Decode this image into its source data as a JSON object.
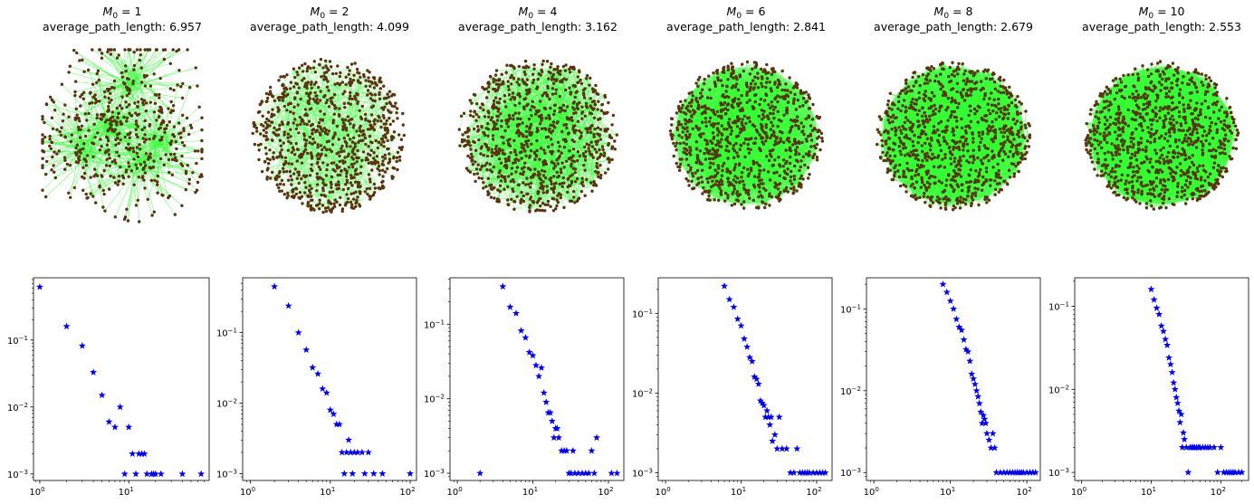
{
  "chart_data": [
    {
      "type": "scatter",
      "panel": "network",
      "title_var": "M",
      "title_sub": "0",
      "title_eq": " = 1",
      "title_metric": "average_path_length: 6.957",
      "m0": 1,
      "average_path_length": 6.957,
      "colors": {
        "node": "#5a3410",
        "edge": "#33ff33"
      }
    },
    {
      "type": "scatter",
      "panel": "network",
      "title_var": "M",
      "title_sub": "0",
      "title_eq": " = 2",
      "title_metric": "average_path_length: 4.099",
      "m0": 2,
      "average_path_length": 4.099,
      "colors": {
        "node": "#5a3410",
        "edge": "#33ff33"
      }
    },
    {
      "type": "scatter",
      "panel": "network",
      "title_var": "M",
      "title_sub": "0",
      "title_eq": " = 4",
      "title_metric": "average_path_length: 3.162",
      "m0": 4,
      "average_path_length": 3.162,
      "colors": {
        "node": "#5a3410",
        "edge": "#33ff33"
      }
    },
    {
      "type": "scatter",
      "panel": "network",
      "title_var": "M",
      "title_sub": "0",
      "title_eq": " = 6",
      "title_metric": "average_path_length: 2.841",
      "m0": 6,
      "average_path_length": 2.841,
      "colors": {
        "node": "#5a3410",
        "edge": "#33ff33"
      }
    },
    {
      "type": "scatter",
      "panel": "network",
      "title_var": "M",
      "title_sub": "0",
      "title_eq": " = 8",
      "title_metric": "average_path_length: 2.679",
      "m0": 8,
      "average_path_length": 2.679,
      "colors": {
        "node": "#5a3410",
        "edge": "#33ff33"
      }
    },
    {
      "type": "scatter",
      "panel": "network",
      "title_var": "M",
      "title_sub": "0",
      "title_eq": " = 10",
      "title_metric": "average_path_length: 2.553",
      "m0": 10,
      "average_path_length": 2.553,
      "colors": {
        "node": "#5a3410",
        "edge": "#33ff33"
      }
    },
    {
      "type": "scatter",
      "panel": "degree-distribution",
      "xscale": "log",
      "yscale": "log",
      "xlim": [
        0.85,
        80
      ],
      "ylim": [
        0.0008,
        0.85
      ],
      "xticks": [
        {
          "base": "10",
          "exp": "0",
          "value": 1
        },
        {
          "base": "10",
          "exp": "1",
          "value": 10
        }
      ],
      "yticks": [
        {
          "base": "10",
          "exp": "−3",
          "value": 0.001
        },
        {
          "base": "10",
          "exp": "−2",
          "value": 0.01
        },
        {
          "base": "10",
          "exp": "−1",
          "value": 0.1
        }
      ],
      "marker": "*",
      "color": "#0000ff",
      "x": [
        1,
        2,
        3,
        4,
        5,
        6,
        7,
        8,
        9,
        10,
        11,
        12,
        13,
        14,
        15,
        16,
        18,
        19,
        20,
        23,
        40,
        65
      ],
      "y": [
        0.62,
        0.16,
        0.082,
        0.033,
        0.015,
        0.006,
        0.005,
        0.01,
        0.001,
        0.005,
        0.002,
        0.001,
        0.002,
        0.002,
        0.002,
        0.001,
        0.001,
        0.001,
        0.001,
        0.001,
        0.001,
        0.001
      ]
    },
    {
      "type": "scatter",
      "panel": "degree-distribution",
      "xscale": "log",
      "yscale": "log",
      "xlim": [
        0.8,
        120
      ],
      "ylim": [
        0.0008,
        0.6
      ],
      "xticks": [
        {
          "base": "10",
          "exp": "0",
          "value": 1
        },
        {
          "base": "10",
          "exp": "1",
          "value": 10
        },
        {
          "base": "10",
          "exp": "2",
          "value": 100
        }
      ],
      "yticks": [
        {
          "base": "10",
          "exp": "−3",
          "value": 0.001
        },
        {
          "base": "10",
          "exp": "−2",
          "value": 0.01
        },
        {
          "base": "10",
          "exp": "−1",
          "value": 0.1
        }
      ],
      "marker": "*",
      "color": "#0000ff",
      "x": [
        2,
        3,
        4,
        5,
        6,
        7,
        8,
        9,
        10,
        11,
        12,
        13,
        14,
        15,
        16,
        17,
        18,
        19,
        20,
        22,
        25,
        27,
        30,
        35,
        45,
        100
      ],
      "y": [
        0.45,
        0.24,
        0.1,
        0.057,
        0.032,
        0.026,
        0.016,
        0.014,
        0.008,
        0.007,
        0.005,
        0.005,
        0.002,
        0.001,
        0.002,
        0.003,
        0.002,
        0.001,
        0.002,
        0.002,
        0.002,
        0.001,
        0.002,
        0.001,
        0.001,
        0.001
      ]
    },
    {
      "type": "scatter",
      "panel": "degree-distribution",
      "xscale": "log",
      "yscale": "log",
      "xlim": [
        0.8,
        160
      ],
      "ylim": [
        0.0008,
        0.42
      ],
      "xticks": [
        {
          "base": "10",
          "exp": "0",
          "value": 1
        },
        {
          "base": "10",
          "exp": "1",
          "value": 10
        },
        {
          "base": "10",
          "exp": "2",
          "value": 100
        }
      ],
      "yticks": [
        {
          "base": "10",
          "exp": "−3",
          "value": 0.001
        },
        {
          "base": "10",
          "exp": "−2",
          "value": 0.01
        },
        {
          "base": "10",
          "exp": "−1",
          "value": 0.1
        }
      ],
      "marker": "*",
      "color": "#0000ff",
      "x": [
        2,
        4,
        5,
        6,
        7,
        8,
        9,
        10,
        11,
        12,
        13,
        14,
        15,
        16,
        17,
        18,
        19,
        20,
        21,
        22,
        24,
        26,
        28,
        30,
        32,
        34,
        36,
        40,
        45,
        50,
        55,
        60,
        65,
        70,
        110,
        130
      ],
      "y": [
        0.001,
        0.32,
        0.17,
        0.14,
        0.082,
        0.066,
        0.042,
        0.038,
        0.028,
        0.02,
        0.026,
        0.012,
        0.009,
        0.0065,
        0.0065,
        0.005,
        0.003,
        0.004,
        0.004,
        0.003,
        0.002,
        0.002,
        0.002,
        0.001,
        0.001,
        0.002,
        0.001,
        0.001,
        0.001,
        0.001,
        0.001,
        0.002,
        0.001,
        0.003,
        0.001,
        0.001
      ]
    },
    {
      "type": "scatter",
      "panel": "degree-distribution",
      "xscale": "log",
      "yscale": "log",
      "xlim": [
        0.8,
        160
      ],
      "ylim": [
        0.0008,
        0.28
      ],
      "xticks": [
        {
          "base": "10",
          "exp": "0",
          "value": 1
        },
        {
          "base": "10",
          "exp": "1",
          "value": 10
        },
        {
          "base": "10",
          "exp": "2",
          "value": 100
        }
      ],
      "yticks": [
        {
          "base": "10",
          "exp": "−3",
          "value": 0.001
        },
        {
          "base": "10",
          "exp": "−2",
          "value": 0.01
        },
        {
          "base": "10",
          "exp": "−1",
          "value": 0.1
        }
      ],
      "marker": "*",
      "color": "#0000ff",
      "x": [
        6,
        7,
        8,
        9,
        10,
        11,
        12,
        13,
        14,
        15,
        16,
        17,
        18,
        19,
        20,
        21,
        22,
        23,
        24,
        25,
        26,
        28,
        30,
        32,
        35,
        40,
        45,
        50,
        55,
        60,
        65,
        70,
        75,
        80,
        90,
        100,
        110,
        120,
        130
      ],
      "y": [
        0.22,
        0.15,
        0.12,
        0.085,
        0.07,
        0.048,
        0.038,
        0.028,
        0.025,
        0.016,
        0.015,
        0.013,
        0.008,
        0.0075,
        0.007,
        0.005,
        0.006,
        0.005,
        0.004,
        0.005,
        0.0025,
        0.003,
        0.002,
        0.005,
        0.002,
        0.002,
        0.001,
        0.001,
        0.002,
        0.001,
        0.001,
        0.001,
        0.001,
        0.001,
        0.001,
        0.001,
        0.001,
        0.001,
        0.001
      ]
    },
    {
      "type": "scatter",
      "panel": "degree-distribution",
      "xscale": "log",
      "yscale": "log",
      "xlim": [
        0.8,
        150
      ],
      "ylim": [
        0.0008,
        0.24
      ],
      "xticks": [
        {
          "base": "10",
          "exp": "0",
          "value": 1
        },
        {
          "base": "10",
          "exp": "1",
          "value": 10
        },
        {
          "base": "10",
          "exp": "2",
          "value": 100
        }
      ],
      "yticks": [
        {
          "base": "10",
          "exp": "−3",
          "value": 0.001
        },
        {
          "base": "10",
          "exp": "−2",
          "value": 0.01
        },
        {
          "base": "10",
          "exp": "−1",
          "value": 0.1
        }
      ],
      "marker": "*",
      "color": "#0000ff",
      "x": [
        8,
        9,
        10,
        11,
        12,
        13,
        14,
        15,
        16,
        17,
        18,
        19,
        20,
        21,
        22,
        23,
        24,
        25,
        26,
        27,
        28,
        29,
        30,
        32,
        34,
        36,
        38,
        40,
        45,
        50,
        55,
        60,
        65,
        70,
        75,
        80,
        85,
        90,
        100,
        110,
        120,
        130
      ],
      "y": [
        0.2,
        0.16,
        0.125,
        0.1,
        0.075,
        0.06,
        0.055,
        0.042,
        0.032,
        0.03,
        0.023,
        0.016,
        0.014,
        0.012,
        0.01,
        0.0085,
        0.007,
        0.0055,
        0.004,
        0.005,
        0.0045,
        0.004,
        0.003,
        0.0025,
        0.002,
        0.003,
        0.002,
        0.001,
        0.001,
        0.001,
        0.001,
        0.001,
        0.001,
        0.001,
        0.001,
        0.001,
        0.001,
        0.001,
        0.001,
        0.001,
        0.001,
        0.001
      ]
    },
    {
      "type": "scatter",
      "panel": "degree-distribution",
      "xscale": "log",
      "yscale": "log",
      "xlim": [
        0.8,
        250
      ],
      "ylim": [
        0.0008,
        0.22
      ],
      "xticks": [
        {
          "base": "10",
          "exp": "0",
          "value": 1
        },
        {
          "base": "10",
          "exp": "1",
          "value": 10
        },
        {
          "base": "10",
          "exp": "2",
          "value": 100
        }
      ],
      "yticks": [
        {
          "base": "10",
          "exp": "−3",
          "value": 0.001
        },
        {
          "base": "10",
          "exp": "−2",
          "value": 0.01
        },
        {
          "base": "10",
          "exp": "−1",
          "value": 0.1
        }
      ],
      "marker": "*",
      "color": "#0000ff",
      "x": [
        10,
        11,
        12,
        13,
        14,
        15,
        16,
        17,
        18,
        19,
        20,
        21,
        22,
        23,
        24,
        25,
        26,
        27,
        28,
        29,
        30,
        32,
        34,
        36,
        38,
        40,
        42,
        45,
        48,
        50,
        55,
        60,
        65,
        70,
        80,
        90,
        100,
        110,
        120,
        130,
        140,
        150,
        160,
        180,
        200
      ],
      "y": [
        0.16,
        0.12,
        0.095,
        0.08,
        0.058,
        0.05,
        0.04,
        0.034,
        0.024,
        0.02,
        0.016,
        0.012,
        0.01,
        0.008,
        0.0068,
        0.0055,
        0.004,
        0.005,
        0.002,
        0.003,
        0.0025,
        0.002,
        0.001,
        0.002,
        0.002,
        0.002,
        0.002,
        0.002,
        0.002,
        0.002,
        0.002,
        0.002,
        0.002,
        0.002,
        0.002,
        0.001,
        0.002,
        0.001,
        0.001,
        0.001,
        0.001,
        0.001,
        0.001,
        0.001,
        0.001
      ]
    }
  ]
}
